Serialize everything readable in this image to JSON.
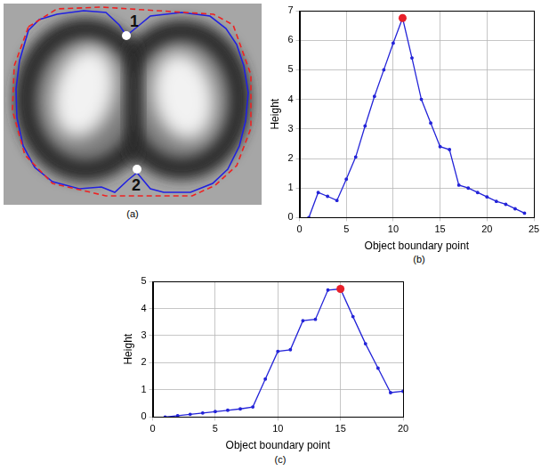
{
  "image_panel": {
    "panel_label": "(a)",
    "markers": [
      "1",
      "2"
    ]
  },
  "chart_data": [
    {
      "type": "line",
      "panel_label": "(b)",
      "x_label": "Object boundary point",
      "y_label": "Height",
      "grid": true,
      "xlim": [
        0,
        25
      ],
      "xticks": [
        0,
        5,
        10,
        15,
        20,
        25
      ],
      "ylim": [
        0,
        7
      ],
      "yticks": [
        0,
        1,
        2,
        3,
        4,
        5,
        6,
        7
      ],
      "series": [
        {
          "color": "#2424d8",
          "marker": "dot",
          "line_style": "solid",
          "x": [
            1,
            2,
            3,
            4,
            5,
            6,
            7,
            8,
            9,
            10,
            11,
            12,
            13,
            14,
            15,
            16,
            17,
            18,
            19,
            20,
            21,
            22,
            23,
            24
          ],
          "values": [
            0,
            0.85,
            0.72,
            0.58,
            1.3,
            2.05,
            3.1,
            4.1,
            5.0,
            5.9,
            6.75,
            5.4,
            4.0,
            3.2,
            2.4,
            2.3,
            1.1,
            1.0,
            0.85,
            0.7,
            0.55,
            0.45,
            0.3,
            0.15
          ]
        },
        {
          "type": "scatter",
          "color": "#e8202a",
          "marker": "circle",
          "x": [
            11
          ],
          "values": [
            6.75
          ]
        }
      ]
    },
    {
      "type": "line",
      "panel_label": "(c)",
      "x_label": "Object boundary point",
      "y_label": "Height",
      "grid": true,
      "xlim": [
        0,
        20
      ],
      "xticks": [
        0,
        5,
        10,
        15,
        20
      ],
      "ylim": [
        0,
        5
      ],
      "yticks": [
        0,
        1,
        2,
        3,
        4,
        5
      ],
      "series": [
        {
          "color": "#2424d8",
          "marker": "dot",
          "line_style": "solid",
          "x": [
            1,
            2,
            3,
            4,
            5,
            6,
            7,
            8,
            9,
            10,
            11,
            12,
            13,
            14,
            15,
            16,
            17,
            18,
            19,
            20
          ],
          "values": [
            0,
            0.05,
            0.1,
            0.15,
            0.2,
            0.25,
            0.3,
            0.37,
            1.4,
            2.42,
            2.48,
            3.55,
            3.6,
            4.68,
            4.72,
            3.7,
            2.7,
            1.8,
            0.9,
            0.95
          ]
        },
        {
          "type": "scatter",
          "color": "#e8202a",
          "marker": "circle",
          "x": [
            15
          ],
          "values": [
            4.72
          ]
        }
      ]
    }
  ]
}
